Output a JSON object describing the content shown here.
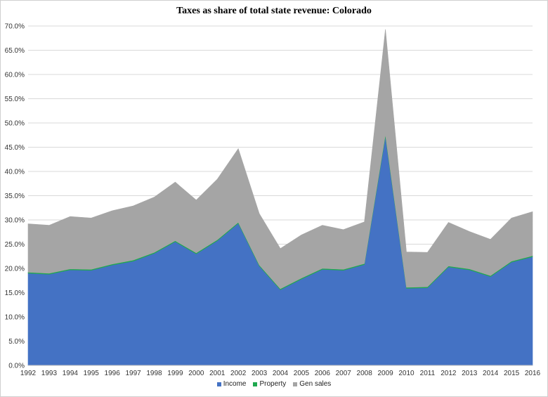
{
  "chart_data": {
    "type": "area",
    "stacked": true,
    "title": "Taxes as share of total state revenue: Colorado",
    "xlabel": "",
    "ylabel": "",
    "categories": [
      "1992",
      "1993",
      "1994",
      "1995",
      "1996",
      "1997",
      "1998",
      "1999",
      "2000",
      "2001",
      "2002",
      "2003",
      "2004",
      "2005",
      "2006",
      "2007",
      "2008",
      "2009",
      "2010",
      "2011",
      "2012",
      "2013",
      "2014",
      "2015",
      "2016"
    ],
    "ylim": [
      0,
      0.7
    ],
    "yticks": [
      "0.0%",
      "5.0%",
      "10.0%",
      "15.0%",
      "20.0%",
      "25.0%",
      "30.0%",
      "35.0%",
      "40.0%",
      "45.0%",
      "50.0%",
      "55.0%",
      "60.0%",
      "65.0%",
      "70.0%"
    ],
    "grid": true,
    "legend_position": "bottom",
    "series": [
      {
        "name": "Income",
        "color": "#4472c4",
        "values": [
          0.19,
          0.188,
          0.197,
          0.196,
          0.207,
          0.215,
          0.231,
          0.255,
          0.23,
          0.257,
          0.293,
          0.205,
          0.156,
          0.178,
          0.198,
          0.196,
          0.208,
          0.472,
          0.159,
          0.16,
          0.203,
          0.197,
          0.183,
          0.213,
          0.224
        ]
      },
      {
        "name": "Property",
        "color": "#1fa84f",
        "values": [
          0.002,
          0.002,
          0.002,
          0.002,
          0.002,
          0.002,
          0.002,
          0.002,
          0.002,
          0.002,
          0.002,
          0.002,
          0.002,
          0.002,
          0.002,
          0.002,
          0.002,
          0.004,
          0.002,
          0.002,
          0.002,
          0.002,
          0.002,
          0.002,
          0.002
        ]
      },
      {
        "name": "Gen sales",
        "color": "#a5a5a5",
        "values": [
          0.1,
          0.099,
          0.108,
          0.106,
          0.11,
          0.112,
          0.114,
          0.121,
          0.109,
          0.125,
          0.152,
          0.106,
          0.083,
          0.089,
          0.089,
          0.082,
          0.086,
          0.217,
          0.073,
          0.071,
          0.09,
          0.077,
          0.075,
          0.089,
          0.091
        ]
      }
    ]
  }
}
